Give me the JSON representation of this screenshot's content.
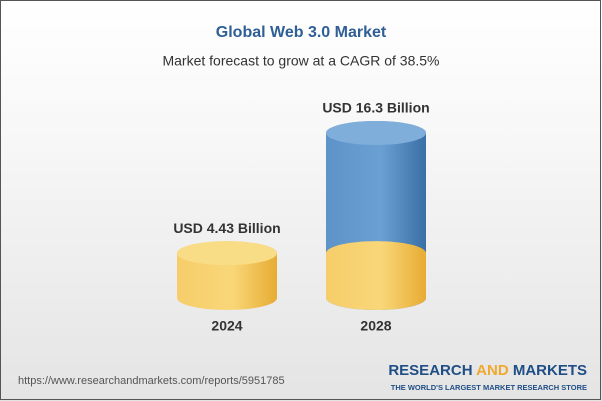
{
  "chart_data": {
    "type": "bar",
    "title": "Global Web 3.0 Market",
    "subtitle": "Market forecast to grow at a CAGR of 38.5%",
    "categories": [
      "2024",
      "2028"
    ],
    "values": [
      4.43,
      16.3
    ],
    "value_labels": [
      "USD 4.43 Billion",
      "USD 16.3 Billion"
    ],
    "colors": [
      "#f3c04e",
      "#4f86bd"
    ]
  },
  "footer": {
    "url": "https://www.researchandmarkets.com/reports/5951785",
    "brand": [
      "RESEARCH",
      "AND",
      "MARKETS"
    ],
    "tagline": "THE WORLD'S LARGEST MARKET RESEARCH STORE"
  }
}
